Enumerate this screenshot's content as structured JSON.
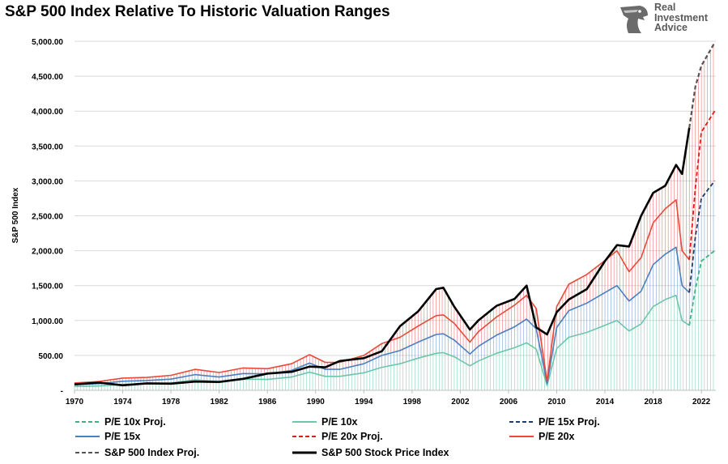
{
  "title": "S&P 500 Index Relative To Historic Valuation Ranges",
  "brand": {
    "line1": "Real",
    "line2": "Investment",
    "line3": "Advice",
    "icon": "eagle-head-icon"
  },
  "colors": {
    "pe10": "#6cc7a8",
    "pe15": "#4a7fc0",
    "pe20": "#e84a3a",
    "spx": "#000000",
    "spx_proj": "#555555",
    "pe10_proj": "#3fb37f",
    "pe15_proj": "#1f3d66",
    "pe20_proj": "#e01b1b",
    "grid": "#d9d9d9",
    "band_red": "#e85a5a",
    "band_blue": "#6b95cf",
    "band_green": "#7fcfb5"
  },
  "chart_data": {
    "type": "line",
    "title": "S&P 500 Index Relative To Historic Valuation Ranges",
    "ylabel": "S&P 500 Index",
    "xlabel": "",
    "xlim": [
      1970,
      2023.2
    ],
    "ylim": [
      0,
      5000
    ],
    "yticks": [
      "-",
      "500.00",
      "1,000.00",
      "1,500.00",
      "2,000.00",
      "2,500.00",
      "3,000.00",
      "3,500.00",
      "4,000.00",
      "4,500.00",
      "5,000.00"
    ],
    "ytick_values": [
      0,
      500,
      1000,
      1500,
      2000,
      2500,
      3000,
      3500,
      4000,
      4500,
      5000
    ],
    "xticks": [
      "1970",
      "1974",
      "1978",
      "1982",
      "1986",
      "1990",
      "1994",
      "1998",
      "2002",
      "2006",
      "2010",
      "2014",
      "2018",
      "2022"
    ],
    "xtick_values": [
      1970,
      1974,
      1978,
      1982,
      1986,
      1990,
      1994,
      1998,
      2002,
      2006,
      2010,
      2014,
      2018,
      2022
    ],
    "grid": "horizontal",
    "legend_position": "bottom",
    "x": [
      1970,
      1972,
      1974,
      1976,
      1978,
      1980,
      1982,
      1984,
      1986,
      1988,
      1989.5,
      1990.8,
      1992,
      1994,
      1995.5,
      1997,
      1998.5,
      2000,
      2000.6,
      2001.5,
      2002.8,
      2003.5,
      2005,
      2006.5,
      2007.5,
      2008.3,
      2009.2,
      2010,
      2011,
      2012.5,
      2014,
      2015,
      2016,
      2017,
      2018,
      2019,
      2019.9,
      2020.4,
      2021
    ],
    "series": [
      {
        "name": "P/E 10x",
        "values": [
          55,
          62,
          85,
          95,
          105,
          150,
          125,
          160,
          155,
          190,
          260,
          200,
          200,
          250,
          330,
          380,
          460,
          530,
          540,
          480,
          350,
          420,
          530,
          610,
          680,
          590,
          70,
          600,
          760,
          830,
          930,
          1000,
          850,
          950,
          1200,
          1300,
          1360,
          1000,
          930
        ]
      },
      {
        "name": "P/E 15x",
        "values": [
          80,
          95,
          130,
          140,
          160,
          225,
          190,
          240,
          235,
          285,
          390,
          300,
          300,
          380,
          500,
          570,
          690,
          800,
          810,
          720,
          520,
          630,
          790,
          910,
          1020,
          880,
          100,
          900,
          1140,
          1250,
          1400,
          1500,
          1280,
          1420,
          1800,
          1950,
          2050,
          1500,
          1400
        ]
      },
      {
        "name": "P/E 20x",
        "values": [
          105,
          125,
          175,
          185,
          215,
          300,
          255,
          320,
          310,
          380,
          510,
          400,
          400,
          500,
          670,
          760,
          920,
          1070,
          1080,
          960,
          690,
          840,
          1050,
          1220,
          1360,
          1170,
          130,
          1200,
          1520,
          1660,
          1860,
          2000,
          1700,
          1900,
          2400,
          2600,
          2730,
          2000,
          1870
        ]
      },
      {
        "name": "S&P 500 Stock Price Index",
        "values": [
          85,
          110,
          72,
          100,
          95,
          125,
          120,
          165,
          240,
          265,
          340,
          330,
          420,
          460,
          560,
          920,
          1130,
          1450,
          1470,
          1200,
          870,
          1000,
          1210,
          1310,
          1500,
          900,
          800,
          1120,
          1300,
          1450,
          1850,
          2080,
          2060,
          2500,
          2830,
          2930,
          3230,
          3100,
          3760
        ]
      },
      {
        "name": "P/E 10x Proj.",
        "x": [
          2021,
          2021.5,
          2022,
          2023.1
        ],
        "values": [
          930,
          1450,
          1850,
          2000
        ]
      },
      {
        "name": "P/E 15x Proj.",
        "x": [
          2021,
          2021.5,
          2022,
          2023.1
        ],
        "values": [
          1400,
          2200,
          2750,
          3000
        ]
      },
      {
        "name": "P/E 20x Proj.",
        "x": [
          2021,
          2021.5,
          2022,
          2023.1
        ],
        "values": [
          1870,
          2900,
          3700,
          4000
        ]
      },
      {
        "name": "S&P 500 Index Proj.",
        "x": [
          2021,
          2021.5,
          2022,
          2023.1
        ],
        "values": [
          3760,
          4350,
          4650,
          4980
        ]
      }
    ]
  },
  "legend": [
    {
      "label": "P/E 10x Proj.",
      "key": "pe10_proj",
      "dash": true
    },
    {
      "label": "P/E 10x",
      "key": "pe10",
      "dash": false
    },
    {
      "label": "P/E 15x Proj.",
      "key": "pe15_proj",
      "dash": true
    },
    {
      "label": "P/E 15x",
      "key": "pe15",
      "dash": false
    },
    {
      "label": "P/E 20x Proj.",
      "key": "pe20_proj",
      "dash": true
    },
    {
      "label": "P/E 20x",
      "key": "pe20",
      "dash": false
    },
    {
      "label": "S&P 500 Index Proj.",
      "key": "spx_proj",
      "dash": true
    },
    {
      "label": "S&P 500 Stock Price Index",
      "key": "spx",
      "dash": false
    }
  ]
}
